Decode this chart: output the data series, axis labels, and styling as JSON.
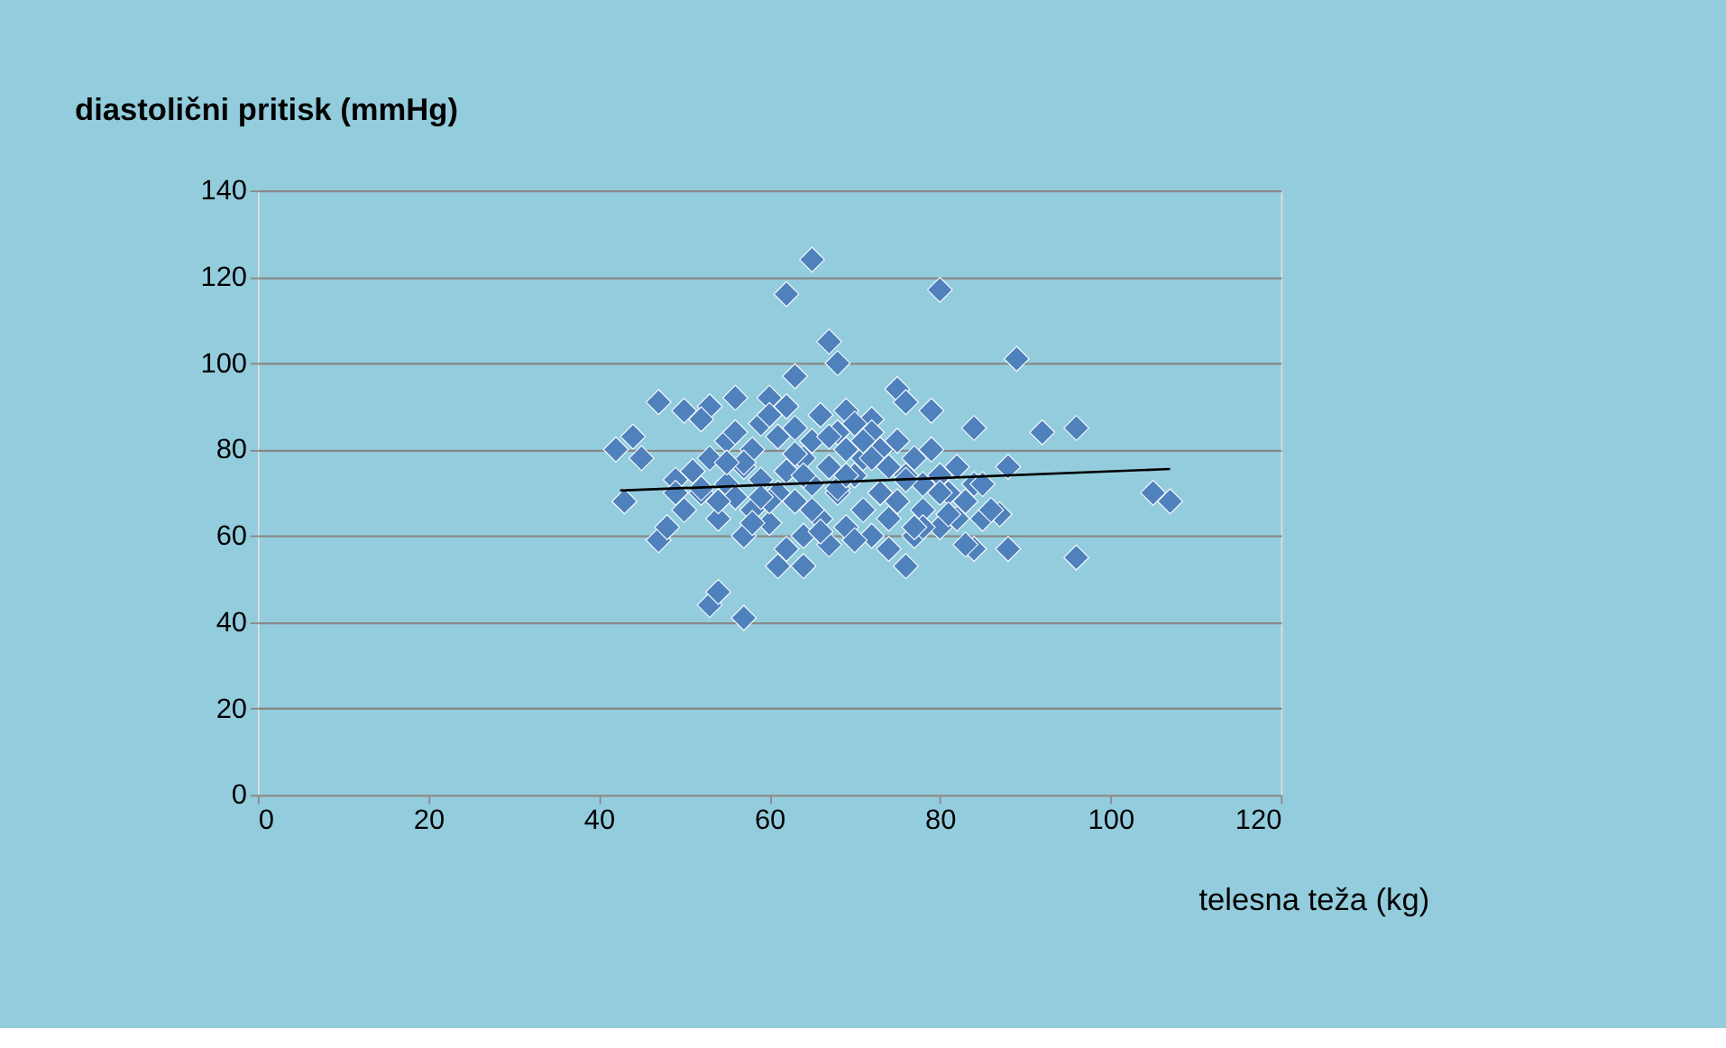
{
  "chart_data": {
    "type": "scatter",
    "title": "diastolični pritisk (mmHg)",
    "xlabel": "telesna teža (kg)",
    "xlim": [
      0,
      120
    ],
    "xticks": [
      0,
      20,
      40,
      60,
      80,
      100,
      120
    ],
    "ylim": [
      0,
      140
    ],
    "yticks": [
      0,
      20,
      40,
      60,
      80,
      100,
      120,
      140
    ],
    "grid": "y",
    "series": [
      {
        "color": "#4f81bd",
        "marker": "diamond",
        "x": [
          65,
          62,
          80,
          67,
          68,
          89,
          63,
          47,
          56,
          53,
          50,
          52,
          60,
          42,
          44,
          45,
          43,
          47,
          48,
          53,
          54,
          57,
          61,
          64,
          76,
          84,
          88,
          96,
          105,
          107,
          92,
          96,
          88,
          87,
          84,
          75,
          76,
          79,
          72,
          69,
          49,
          50,
          51,
          52,
          53,
          54,
          55,
          55,
          56,
          56,
          57,
          57,
          58,
          58,
          59,
          59,
          60,
          60,
          61,
          61,
          62,
          62,
          63,
          63,
          64,
          64,
          65,
          65,
          66,
          66,
          67,
          67,
          68,
          68,
          69,
          69,
          70,
          70,
          71,
          71,
          72,
          72,
          73,
          73,
          74,
          74,
          75,
          75,
          76,
          77,
          77,
          78,
          78,
          79,
          80,
          80,
          81,
          82,
          82,
          83,
          83,
          84,
          85,
          86,
          58,
          62,
          66,
          70,
          74,
          78,
          54,
          60,
          64,
          68,
          72,
          76,
          80,
          57,
          63,
          67,
          71,
          81,
          85,
          49,
          52,
          55,
          59,
          65,
          69,
          73,
          77
        ],
        "values": [
          124,
          116,
          117,
          105,
          100,
          101,
          97,
          91,
          92,
          90,
          89,
          87,
          92,
          80,
          83,
          78,
          68,
          59,
          62,
          44,
          47,
          41,
          53,
          53,
          53,
          57,
          57,
          55,
          70,
          68,
          84,
          85,
          76,
          65,
          85,
          94,
          91,
          89,
          87,
          89,
          73,
          66,
          75,
          70,
          78,
          64,
          82,
          72,
          84,
          69,
          76,
          60,
          80,
          66,
          86,
          73,
          88,
          63,
          83,
          70,
          90,
          75,
          85,
          68,
          78,
          60,
          82,
          72,
          88,
          64,
          76,
          58,
          84,
          70,
          80,
          62,
          86,
          74,
          78,
          66,
          84,
          60,
          80,
          70,
          76,
          64,
          82,
          68,
          74,
          78,
          60,
          72,
          66,
          80,
          74,
          62,
          70,
          76,
          64,
          68,
          58,
          72,
          64,
          66,
          63,
          57,
          61,
          59,
          57,
          62,
          68,
          68,
          74,
          71,
          78,
          73,
          70,
          77,
          79,
          83,
          82,
          65,
          72,
          70,
          71,
          77,
          69,
          66,
          74,
          70,
          62
        ]
      },
      {
        "type": "line",
        "color": "#000000",
        "marker": "none",
        "line_style": "solid",
        "x": [
          42.5,
          107
        ],
        "values": [
          70.5,
          75.5
        ]
      }
    ]
  }
}
